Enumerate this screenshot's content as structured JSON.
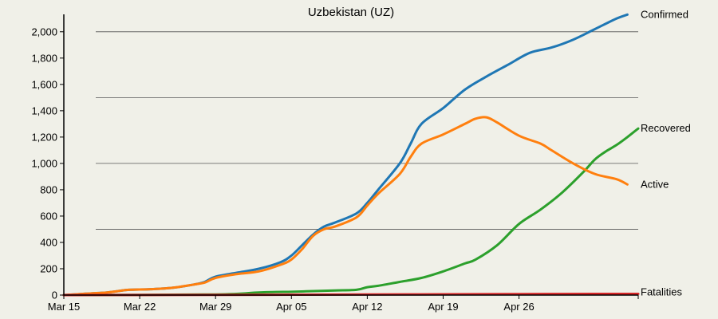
{
  "chart_data": {
    "type": "line",
    "title": "Uzbekistan (UZ)",
    "xlabel": "",
    "ylabel": "",
    "x_start": "2020-03-15",
    "days": 69,
    "x_ticks": [
      {
        "day": 0,
        "label": "Mar 15"
      },
      {
        "day": 7,
        "label": "Mar 22"
      },
      {
        "day": 14,
        "label": "Mar 29"
      },
      {
        "day": 21,
        "label": "Apr 05"
      },
      {
        "day": 28,
        "label": "Apr 12"
      },
      {
        "day": 35,
        "label": "Apr 19"
      },
      {
        "day": 42,
        "label": "Apr 26"
      }
    ],
    "y_ticks": [
      {
        "value": 0,
        "label": "0"
      },
      {
        "value": 200,
        "label": "200"
      },
      {
        "value": 400,
        "label": "400"
      },
      {
        "value": 600,
        "label": "600"
      },
      {
        "value": 800,
        "label": "800"
      },
      {
        "value": 1000,
        "label": "1,000"
      },
      {
        "value": 1200,
        "label": "1,200"
      },
      {
        "value": 1400,
        "label": "1,400"
      },
      {
        "value": 1600,
        "label": "1,600"
      },
      {
        "value": 1800,
        "label": "1,800"
      },
      {
        "value": 2000,
        "label": "2,000"
      }
    ],
    "ylim": [
      0,
      2000
    ],
    "grid_y": [
      500,
      1000,
      1500,
      2000
    ],
    "series": [
      {
        "name": "Confirmed",
        "color": "#1f77b4",
        "points": [
          [
            0,
            0
          ],
          [
            2,
            10
          ],
          [
            4,
            20
          ],
          [
            5,
            30
          ],
          [
            6,
            40
          ],
          [
            8,
            45
          ],
          [
            10,
            55
          ],
          [
            12,
            80
          ],
          [
            13,
            100
          ],
          [
            14,
            140
          ],
          [
            16,
            170
          ],
          [
            18,
            200
          ],
          [
            20,
            250
          ],
          [
            21,
            300
          ],
          [
            22,
            380
          ],
          [
            23,
            460
          ],
          [
            24,
            520
          ],
          [
            25,
            550
          ],
          [
            27,
            620
          ],
          [
            28,
            700
          ],
          [
            29,
            800
          ],
          [
            31,
            1000
          ],
          [
            32,
            1150
          ],
          [
            33,
            1300
          ],
          [
            35,
            1420
          ],
          [
            37,
            1560
          ],
          [
            39,
            1660
          ],
          [
            41,
            1750
          ],
          [
            43,
            1840
          ],
          [
            45,
            1880
          ],
          [
            47,
            1940
          ],
          [
            49,
            2020
          ],
          [
            51,
            2100
          ],
          [
            52,
            2130
          ]
        ]
      },
      {
        "name": "Active",
        "color": "#ff7f0e",
        "points": [
          [
            0,
            0
          ],
          [
            2,
            10
          ],
          [
            4,
            20
          ],
          [
            5,
            30
          ],
          [
            6,
            40
          ],
          [
            8,
            45
          ],
          [
            10,
            55
          ],
          [
            12,
            80
          ],
          [
            13,
            95
          ],
          [
            14,
            130
          ],
          [
            16,
            160
          ],
          [
            18,
            180
          ],
          [
            20,
            230
          ],
          [
            21,
            270
          ],
          [
            22,
            350
          ],
          [
            23,
            450
          ],
          [
            24,
            500
          ],
          [
            25,
            520
          ],
          [
            27,
            590
          ],
          [
            28,
            680
          ],
          [
            29,
            770
          ],
          [
            31,
            920
          ],
          [
            32,
            1050
          ],
          [
            33,
            1150
          ],
          [
            35,
            1220
          ],
          [
            37,
            1300
          ],
          [
            38,
            1340
          ],
          [
            39,
            1350
          ],
          [
            40,
            1310
          ],
          [
            42,
            1210
          ],
          [
            44,
            1150
          ],
          [
            45,
            1100
          ],
          [
            47,
            1000
          ],
          [
            49,
            920
          ],
          [
            51,
            880
          ],
          [
            52,
            840
          ]
        ]
      },
      {
        "name": "Recovered",
        "color": "#2ca02c",
        "points": [
          [
            0,
            0
          ],
          [
            14,
            5
          ],
          [
            18,
            20
          ],
          [
            21,
            25
          ],
          [
            23,
            30
          ],
          [
            25,
            35
          ],
          [
            27,
            40
          ],
          [
            28,
            60
          ],
          [
            29,
            70
          ],
          [
            31,
            100
          ],
          [
            33,
            130
          ],
          [
            35,
            180
          ],
          [
            37,
            240
          ],
          [
            38,
            270
          ],
          [
            40,
            380
          ],
          [
            42,
            540
          ],
          [
            44,
            650
          ],
          [
            46,
            780
          ],
          [
            48,
            940
          ],
          [
            49,
            1030
          ],
          [
            50,
            1090
          ],
          [
            51,
            1140
          ],
          [
            52,
            1200
          ],
          [
            53,
            1265
          ]
        ]
      },
      {
        "name": "Fatalities",
        "color": "#d62728",
        "points": [
          [
            0,
            0
          ],
          [
            14,
            2
          ],
          [
            21,
            3
          ],
          [
            28,
            4
          ],
          [
            35,
            6
          ],
          [
            42,
            8
          ],
          [
            49,
            9
          ],
          [
            52,
            9
          ],
          [
            53,
            9
          ]
        ]
      }
    ]
  }
}
